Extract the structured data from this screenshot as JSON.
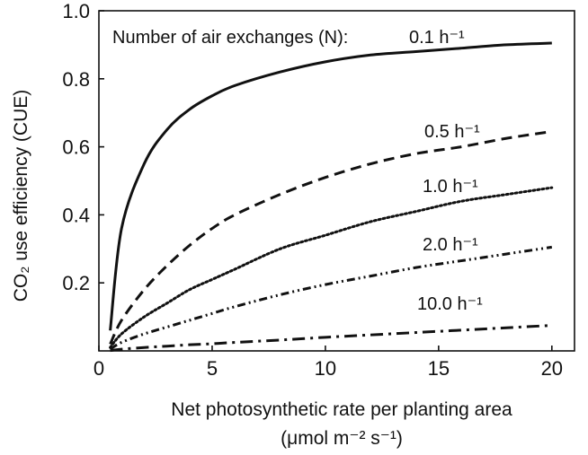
{
  "chart_data": {
    "type": "line",
    "title": "",
    "xlabel_line1": "Net photosynthetic rate per planting area",
    "xlabel_line2": "(μmol m⁻² s⁻¹)",
    "ylabel": "CO₂ use efficiency (CUE)",
    "xlim": [
      0,
      21
    ],
    "ylim": [
      0,
      1.0
    ],
    "x_ticks": [
      0,
      5,
      10,
      15,
      20
    ],
    "x_tick_labels": [
      "0",
      "5",
      "10",
      "15",
      "20"
    ],
    "y_ticks": [
      0.2,
      0.4,
      0.6,
      0.8,
      1.0
    ],
    "y_tick_labels": [
      "0.2",
      "0.4",
      "0.6",
      "0.8",
      "1.0"
    ],
    "grid": false,
    "annotation_prefix": "Number of air exchanges (N):",
    "x": [
      0.5,
      1,
      2,
      3,
      4,
      5,
      6,
      8,
      10,
      12,
      14,
      16,
      18,
      20
    ],
    "series": [
      {
        "name": "0.1 h⁻¹",
        "style": "solid",
        "values": [
          0.06,
          0.36,
          0.55,
          0.65,
          0.71,
          0.75,
          0.78,
          0.82,
          0.85,
          0.87,
          0.88,
          0.89,
          0.9,
          0.905
        ]
      },
      {
        "name": "0.5 h⁻¹",
        "style": "dashed",
        "values": [
          0.02,
          0.09,
          0.18,
          0.25,
          0.31,
          0.36,
          0.4,
          0.46,
          0.51,
          0.55,
          0.58,
          0.6,
          0.625,
          0.645
        ]
      },
      {
        "name": "1.0 h⁻¹",
        "style": "dotted",
        "values": [
          0.01,
          0.05,
          0.1,
          0.14,
          0.18,
          0.21,
          0.24,
          0.3,
          0.34,
          0.38,
          0.41,
          0.44,
          0.46,
          0.48
        ]
      },
      {
        "name": "2.0 h⁻¹",
        "style": "dashdotdot",
        "values": [
          0.005,
          0.025,
          0.05,
          0.07,
          0.09,
          0.11,
          0.13,
          0.165,
          0.195,
          0.22,
          0.245,
          0.265,
          0.285,
          0.305
        ]
      },
      {
        "name": "10.0 h⁻¹",
        "style": "dashdot",
        "values": [
          0.001,
          0.005,
          0.01,
          0.014,
          0.018,
          0.021,
          0.025,
          0.032,
          0.04,
          0.047,
          0.054,
          0.061,
          0.068,
          0.075
        ]
      }
    ]
  }
}
